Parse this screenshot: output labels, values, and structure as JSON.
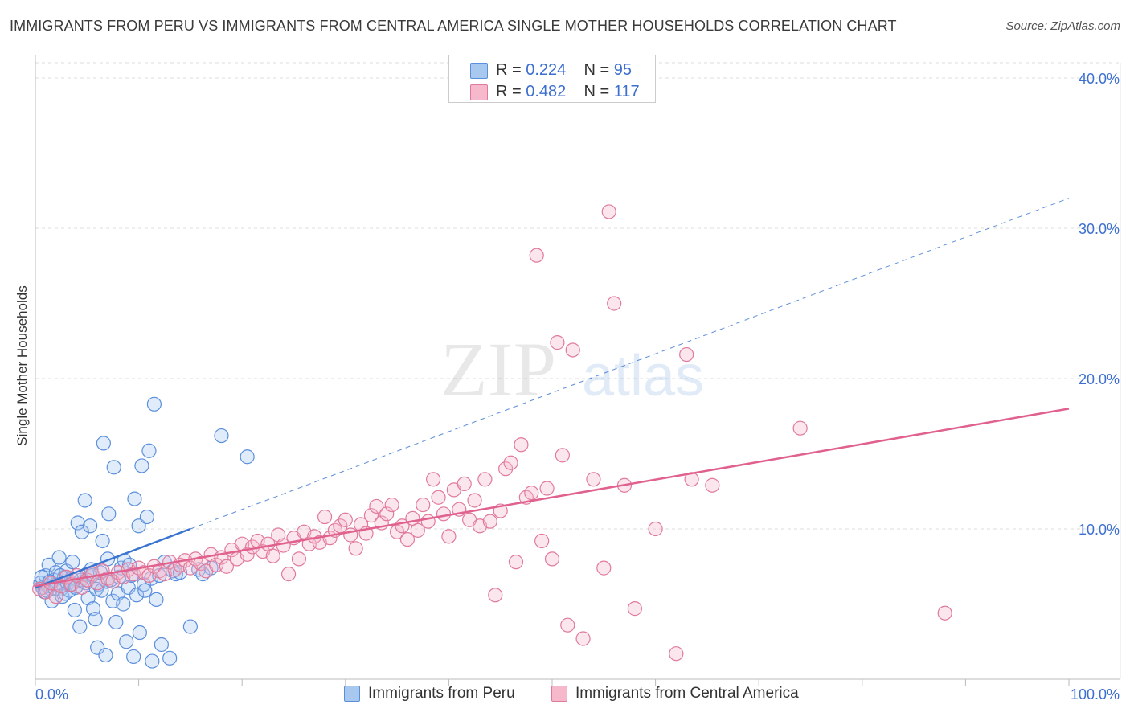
{
  "title": "IMMIGRANTS FROM PERU VS IMMIGRANTS FROM CENTRAL AMERICA SINGLE MOTHER HOUSEHOLDS CORRELATION CHART",
  "source": "Source: ZipAtlas.com",
  "watermark": {
    "zip": "ZIP",
    "atlas": "atlas"
  },
  "legend": {
    "peru": {
      "r_label": "R = ",
      "r_value": "0.224",
      "n_label": "N = ",
      "n_value": "95"
    },
    "central_america": {
      "r_label": "R = ",
      "r_value": "0.482",
      "n_label": "N = ",
      "n_value": "117"
    }
  },
  "colors": {
    "peru_fill": "#a8c8f0",
    "peru_stroke": "#5b8fdc",
    "peru_line": "#3a74d0",
    "ca_fill": "#f6b8cb",
    "ca_stroke": "#e07a9c",
    "ca_line": "#e0608e",
    "tick_text": "#3d6fcf",
    "grid": "#dddddd"
  },
  "chart_data": {
    "type": "scatter",
    "title": "IMMIGRANTS FROM PERU VS IMMIGRANTS FROM CENTRAL AMERICA SINGLE MOTHER HOUSEHOLDS CORRELATION CHART",
    "xlabel": "",
    "ylabel": "Single Mother Households",
    "xlim": [
      0,
      100
    ],
    "ylim": [
      0,
      40
    ],
    "x_tick_labels": [
      "0.0%",
      "100.0%"
    ],
    "y_ticks": [
      10,
      20,
      30,
      40
    ],
    "y_tick_labels": [
      "10.0%",
      "20.0%",
      "30.0%",
      "40.0%"
    ],
    "grid": true,
    "series": [
      {
        "name": "Immigrants from Peru",
        "r": 0.224,
        "n": 95,
        "trend_solid": [
          [
            0,
            6.1
          ],
          [
            15,
            10.0
          ]
        ],
        "trend_dashed": [
          [
            15,
            10.0
          ],
          [
            100,
            32.0
          ]
        ],
        "points": [
          [
            0.5,
            6.4
          ],
          [
            0.7,
            6.1
          ],
          [
            0.9,
            5.8
          ],
          [
            1.0,
            6.9
          ],
          [
            1.2,
            6.2
          ],
          [
            1.3,
            7.6
          ],
          [
            1.5,
            6.0
          ],
          [
            1.6,
            5.2
          ],
          [
            1.8,
            6.6
          ],
          [
            2.0,
            7.1
          ],
          [
            2.1,
            6.3
          ],
          [
            2.3,
            8.1
          ],
          [
            2.5,
            6.0
          ],
          [
            2.6,
            5.5
          ],
          [
            2.8,
            6.8
          ],
          [
            3.0,
            7.2
          ],
          [
            3.1,
            6.4
          ],
          [
            3.3,
            5.9
          ],
          [
            3.5,
            6.7
          ],
          [
            3.6,
            7.8
          ],
          [
            3.8,
            4.6
          ],
          [
            4.0,
            6.2
          ],
          [
            4.1,
            10.4
          ],
          [
            4.3,
            3.5
          ],
          [
            4.5,
            9.8
          ],
          [
            4.6,
            6.5
          ],
          [
            4.8,
            11.9
          ],
          [
            5.0,
            7.0
          ],
          [
            5.1,
            5.4
          ],
          [
            5.3,
            10.2
          ],
          [
            5.5,
            6.9
          ],
          [
            5.6,
            4.7
          ],
          [
            5.8,
            4.0
          ],
          [
            6.0,
            2.1
          ],
          [
            6.1,
            6.3
          ],
          [
            6.3,
            7.1
          ],
          [
            6.5,
            9.2
          ],
          [
            6.6,
            15.7
          ],
          [
            6.8,
            1.6
          ],
          [
            7.0,
            8.0
          ],
          [
            7.1,
            11.0
          ],
          [
            7.3,
            6.6
          ],
          [
            7.5,
            5.2
          ],
          [
            7.6,
            14.1
          ],
          [
            7.8,
            3.8
          ],
          [
            8.0,
            5.7
          ],
          [
            8.1,
            6.8
          ],
          [
            8.3,
            7.4
          ],
          [
            8.5,
            5.0
          ],
          [
            8.6,
            7.9
          ],
          [
            8.8,
            2.5
          ],
          [
            9.0,
            6.1
          ],
          [
            9.1,
            7.6
          ],
          [
            9.3,
            6.9
          ],
          [
            9.5,
            1.5
          ],
          [
            9.6,
            12.0
          ],
          [
            9.8,
            5.6
          ],
          [
            10.0,
            10.2
          ],
          [
            10.1,
            3.1
          ],
          [
            10.3,
            14.2
          ],
          [
            10.5,
            6.3
          ],
          [
            10.6,
            5.9
          ],
          [
            10.8,
            10.8
          ],
          [
            11.0,
            15.2
          ],
          [
            11.2,
            6.7
          ],
          [
            11.3,
            1.2
          ],
          [
            11.5,
            18.3
          ],
          [
            11.7,
            5.3
          ],
          [
            12.0,
            6.9
          ],
          [
            12.2,
            2.3
          ],
          [
            12.5,
            7.8
          ],
          [
            13.0,
            1.4
          ],
          [
            13.3,
            7.2
          ],
          [
            13.6,
            7.0
          ],
          [
            14.0,
            7.1
          ],
          [
            15.0,
            3.5
          ],
          [
            15.8,
            7.3
          ],
          [
            16.2,
            7.0
          ],
          [
            17.0,
            7.4
          ],
          [
            18.0,
            16.2
          ],
          [
            0.6,
            6.8
          ],
          [
            1.1,
            5.9
          ],
          [
            1.4,
            6.5
          ],
          [
            1.9,
            6.0
          ],
          [
            2.4,
            6.9
          ],
          [
            2.9,
            5.7
          ],
          [
            3.4,
            6.3
          ],
          [
            3.9,
            6.1
          ],
          [
            4.4,
            6.6
          ],
          [
            4.9,
            6.4
          ],
          [
            5.4,
            7.3
          ],
          [
            5.9,
            6.0
          ],
          [
            6.4,
            5.9
          ],
          [
            6.9,
            6.5
          ],
          [
            20.5,
            14.8
          ]
        ]
      },
      {
        "name": "Immigrants from Central America",
        "r": 0.482,
        "n": 117,
        "trend_solid": [
          [
            0,
            6.2
          ],
          [
            100,
            18.0
          ]
        ],
        "points": [
          [
            0.4,
            6.0
          ],
          [
            1.0,
            5.8
          ],
          [
            1.5,
            6.4
          ],
          [
            2.0,
            5.5
          ],
          [
            2.5,
            6.2
          ],
          [
            3.0,
            6.8
          ],
          [
            3.5,
            6.3
          ],
          [
            4.0,
            6.9
          ],
          [
            4.5,
            6.1
          ],
          [
            5.0,
            6.6
          ],
          [
            5.5,
            7.0
          ],
          [
            6.0,
            6.4
          ],
          [
            6.5,
            7.2
          ],
          [
            7.0,
            6.7
          ],
          [
            7.5,
            6.5
          ],
          [
            8.0,
            7.1
          ],
          [
            8.5,
            6.8
          ],
          [
            9.0,
            7.3
          ],
          [
            9.5,
            7.0
          ],
          [
            10.0,
            7.4
          ],
          [
            10.5,
            7.1
          ],
          [
            11.0,
            6.9
          ],
          [
            11.5,
            7.5
          ],
          [
            12.0,
            7.2
          ],
          [
            12.5,
            7.0
          ],
          [
            13.0,
            7.8
          ],
          [
            13.5,
            7.3
          ],
          [
            14.0,
            7.6
          ],
          [
            14.5,
            7.9
          ],
          [
            15.0,
            7.4
          ],
          [
            15.5,
            8.0
          ],
          [
            16.0,
            7.7
          ],
          [
            16.5,
            7.2
          ],
          [
            17.0,
            8.3
          ],
          [
            17.5,
            7.6
          ],
          [
            18.0,
            8.1
          ],
          [
            18.5,
            7.5
          ],
          [
            19.0,
            8.6
          ],
          [
            19.5,
            8.0
          ],
          [
            20.0,
            9.0
          ],
          [
            20.5,
            8.3
          ],
          [
            21.0,
            8.8
          ],
          [
            21.5,
            9.2
          ],
          [
            22.0,
            8.5
          ],
          [
            22.5,
            9.0
          ],
          [
            23.0,
            8.2
          ],
          [
            23.5,
            9.6
          ],
          [
            24.0,
            8.9
          ],
          [
            24.5,
            7.0
          ],
          [
            25.0,
            9.4
          ],
          [
            25.5,
            8.0
          ],
          [
            26.0,
            9.8
          ],
          [
            26.5,
            9.0
          ],
          [
            27.0,
            9.5
          ],
          [
            27.5,
            9.1
          ],
          [
            28.0,
            10.8
          ],
          [
            28.5,
            9.4
          ],
          [
            29.0,
            9.9
          ],
          [
            29.5,
            10.2
          ],
          [
            30.0,
            10.6
          ],
          [
            30.5,
            9.6
          ],
          [
            31.0,
            8.7
          ],
          [
            31.5,
            10.3
          ],
          [
            32.0,
            9.7
          ],
          [
            32.5,
            10.9
          ],
          [
            33.0,
            11.5
          ],
          [
            33.5,
            10.4
          ],
          [
            34.0,
            11.0
          ],
          [
            34.5,
            11.6
          ],
          [
            35.0,
            9.8
          ],
          [
            35.5,
            10.2
          ],
          [
            36.0,
            9.3
          ],
          [
            36.5,
            10.7
          ],
          [
            37.0,
            9.9
          ],
          [
            37.5,
            11.6
          ],
          [
            38.0,
            10.5
          ],
          [
            38.5,
            13.3
          ],
          [
            39.0,
            12.1
          ],
          [
            39.5,
            11.0
          ],
          [
            40.0,
            9.5
          ],
          [
            40.5,
            12.6
          ],
          [
            41.0,
            11.3
          ],
          [
            41.5,
            13.0
          ],
          [
            42.0,
            10.6
          ],
          [
            42.5,
            11.9
          ],
          [
            43.0,
            10.2
          ],
          [
            43.5,
            13.3
          ],
          [
            44.0,
            10.5
          ],
          [
            44.5,
            5.6
          ],
          [
            45.0,
            11.2
          ],
          [
            45.5,
            14.0
          ],
          [
            46.0,
            14.4
          ],
          [
            46.5,
            7.8
          ],
          [
            47.0,
            15.6
          ],
          [
            47.5,
            12.1
          ],
          [
            48.0,
            12.4
          ],
          [
            48.5,
            28.2
          ],
          [
            49.0,
            9.2
          ],
          [
            49.5,
            12.7
          ],
          [
            50.0,
            8.0
          ],
          [
            50.5,
            22.4
          ],
          [
            51.0,
            14.9
          ],
          [
            51.5,
            3.6
          ],
          [
            52.0,
            21.9
          ],
          [
            53.0,
            2.7
          ],
          [
            54.0,
            13.3
          ],
          [
            55.0,
            7.4
          ],
          [
            55.5,
            31.1
          ],
          [
            56.0,
            25.0
          ],
          [
            57.0,
            12.9
          ],
          [
            58.0,
            4.7
          ],
          [
            60.0,
            10.0
          ],
          [
            62.0,
            1.7
          ],
          [
            63.0,
            21.6
          ],
          [
            63.5,
            13.3
          ],
          [
            65.5,
            12.9
          ],
          [
            74.0,
            16.7
          ],
          [
            88.0,
            4.4
          ]
        ]
      }
    ]
  },
  "bottom_legend": {
    "peru_label": "Immigrants from Peru",
    "ca_label": "Immigrants from Central America"
  }
}
